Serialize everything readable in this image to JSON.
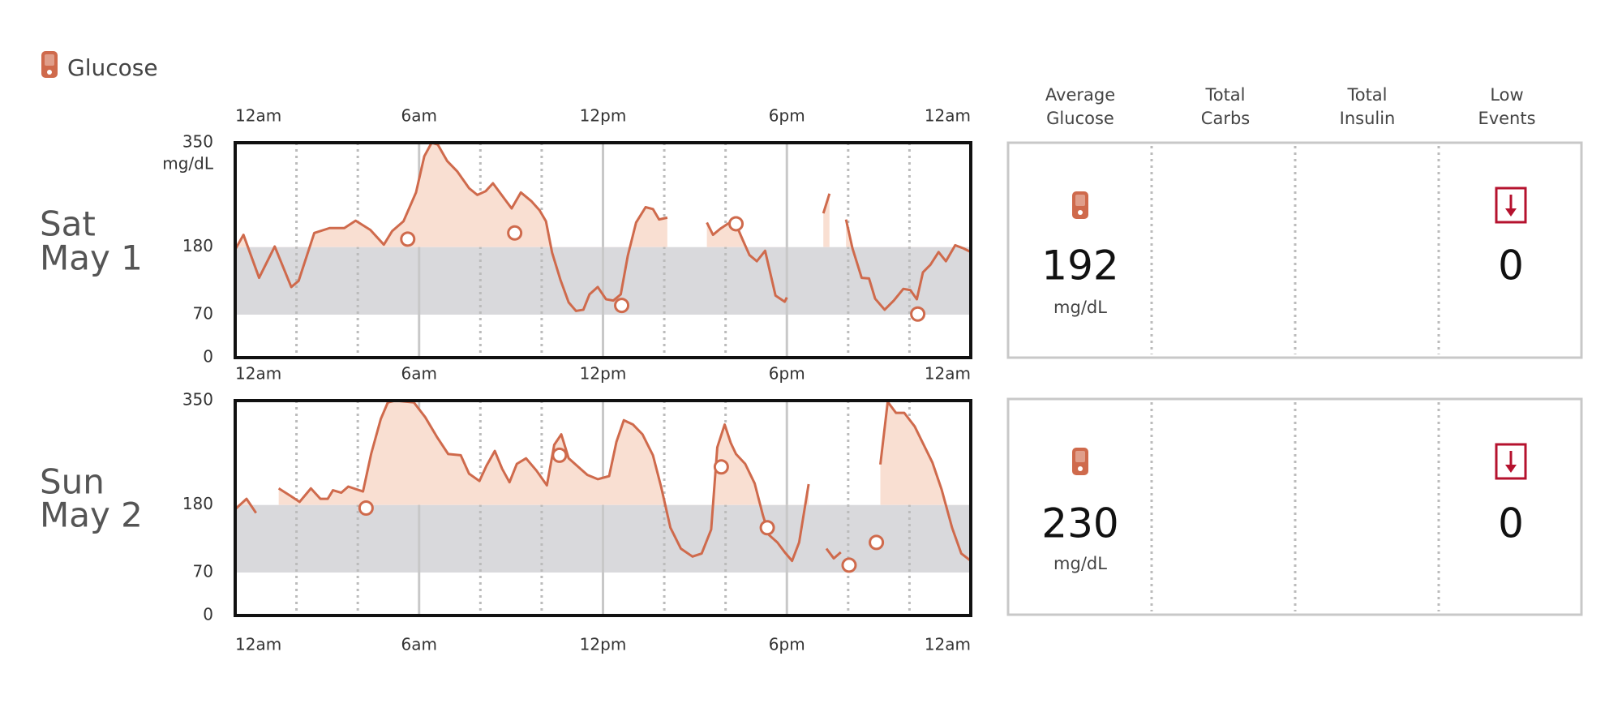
{
  "header": {
    "title": "Glucose"
  },
  "stats_header": [
    [
      "Average",
      "Glucose"
    ],
    [
      "Total",
      "Carbs"
    ],
    [
      "Total",
      "Insulin"
    ],
    [
      "Low",
      "Events"
    ]
  ],
  "days": [
    {
      "label": [
        "Sat",
        "May 1"
      ],
      "average_glucose": 192,
      "average_unit": "mg/dL",
      "low_events": 0
    },
    {
      "label": [
        "Sun",
        "May 2"
      ],
      "average_glucose": 230,
      "average_unit": "mg/dL",
      "low_events": 0
    }
  ],
  "chart_data": [
    {
      "type": "line",
      "xlim": [
        0,
        24
      ],
      "xticks": [
        {
          "value": 0,
          "label": "12am"
        },
        {
          "value": 6,
          "label": "6am"
        },
        {
          "value": 12,
          "label": "12pm"
        },
        {
          "value": 18,
          "label": "6pm"
        },
        {
          "value": 24,
          "label": "12am"
        }
      ],
      "xminorticks": [
        2,
        4,
        8,
        10,
        14,
        16,
        20,
        22
      ],
      "ylim": [
        0,
        350
      ],
      "yticks": [
        0,
        70,
        180,
        350
      ],
      "y_unit": "mg/dL",
      "target_range": [
        70,
        180
      ],
      "series": [
        {
          "type": "line",
          "color": "#cf6a4c",
          "area_color": "#f9dfd2",
          "x": [
            0,
            0.27,
            0.78,
            1.29,
            1.83,
            2.07,
            2.58,
            3.08,
            3.56,
            3.93,
            4.41,
            4.85,
            5.12,
            5.49,
            5.9,
            6.17,
            6.41,
            6.61,
            6.92,
            7.25,
            7.63,
            7.9,
            8.17,
            8.41,
            8.81,
            9.02,
            9.32,
            9.66,
            9.93,
            10.14,
            10.34,
            10.61,
            10.88,
            11.12,
            11.36,
            11.56,
            11.83,
            12.1,
            12.34,
            12.58,
            12.81,
            13.08,
            13.39,
            13.63,
            13.83,
            14.1,
            14.7,
            15.39,
            15.59,
            15.83,
            16.07,
            16.3,
            16.54,
            16.78,
            17.02,
            17.29,
            17.63,
            17.93,
            18.0,
            18.6,
            19.19,
            19.39,
            19.6,
            19.93,
            20.14,
            20.44,
            20.68,
            20.88,
            21.19,
            21.49,
            21.8,
            22.03,
            22.24,
            22.44,
            22.68,
            22.95,
            23.19,
            23.49,
            23.76,
            24
          ],
          "values": [
            176,
            200,
            130,
            181,
            115,
            125,
            203,
            211,
            211,
            223,
            208,
            184,
            206,
            222,
            269,
            328,
            350,
            347,
            320,
            303,
            276,
            265,
            271,
            284,
            257,
            243,
            269,
            255,
            240,
            222,
            171,
            127,
            90,
            76,
            78,
            103,
            115,
            95,
            93,
            103,
            166,
            220,
            245,
            242,
            225,
            228,
            null,
            220,
            200,
            210,
            218,
            222,
            194,
            167,
            157,
            174,
            101,
            91,
            98,
            null,
            235,
            267,
            null,
            225,
            178,
            130,
            129,
            96,
            78,
            93,
            112,
            110,
            95,
            139,
            151,
            172,
            157,
            183,
            178,
            172
          ]
        },
        {
          "type": "scatter",
          "color": "#cf6a4c",
          "x": [
            5.63,
            9.12,
            12.61,
            16.34,
            22.27
          ],
          "values": [
            193,
            203,
            85,
            218,
            71
          ]
        }
      ]
    },
    {
      "type": "line",
      "xlim": [
        0,
        24
      ],
      "xticks": [
        {
          "value": 0,
          "label": "12am"
        },
        {
          "value": 6,
          "label": "6am"
        },
        {
          "value": 12,
          "label": "12pm"
        },
        {
          "value": 18,
          "label": "6pm"
        },
        {
          "value": 24,
          "label": "12am"
        }
      ],
      "xminorticks": [
        2,
        4,
        8,
        10,
        14,
        16,
        20,
        22
      ],
      "ylim": [
        0,
        350
      ],
      "yticks": [
        0,
        70,
        180,
        350
      ],
      "target_range": [
        70,
        180
      ],
      "series": [
        {
          "type": "line",
          "color": "#cf6a4c",
          "area_color": "#f9dfd2",
          "x": [
            0,
            0.37,
            0.68,
            1.0,
            1.42,
            1.8,
            2.1,
            2.47,
            2.78,
            3.02,
            3.19,
            3.46,
            3.69,
            4.17,
            4.44,
            4.75,
            4.98,
            5.22,
            5.83,
            6.2,
            6.58,
            6.95,
            7.36,
            7.63,
            7.97,
            8.2,
            8.47,
            8.71,
            8.95,
            9.19,
            9.49,
            9.83,
            10.17,
            10.41,
            10.64,
            10.88,
            11.15,
            11.49,
            11.83,
            12.2,
            12.44,
            12.68,
            12.98,
            13.29,
            13.63,
            13.9,
            14.2,
            14.54,
            14.92,
            15.22,
            15.53,
            15.73,
            15.97,
            16.17,
            16.34,
            16.64,
            16.95,
            17.22,
            17.42,
            17.69,
            17.93,
            18.17,
            18.4,
            18.71,
            19.0,
            19.29,
            19.53,
            19.76,
            20.4,
            21.05,
            21.29,
            21.56,
            21.83,
            22.17,
            22.75,
            23.05,
            23.39,
            23.69,
            24
          ],
          "values": [
            173,
            190,
            167,
            null,
            207,
            195,
            185,
            207,
            190,
            190,
            204,
            200,
            210,
            202,
            264,
            320,
            347,
            350,
            347,
            323,
            291,
            263,
            261,
            231,
            219,
            244,
            268,
            239,
            217,
            247,
            256,
            236,
            212,
            278,
            295,
            256,
            244,
            229,
            222,
            227,
            283,
            318,
            311,
            295,
            261,
            209,
            143,
            109,
            96,
            101,
            140,
            274,
            311,
            281,
            263,
            247,
            215,
            163,
            131,
            119,
            103,
            89,
            119,
            214,
            null,
            109,
            93,
            103,
            null,
            246,
            348,
            330,
            330,
            308,
            249,
            205,
            143,
            101,
            89
          ]
        },
        {
          "type": "scatter",
          "color": "#cf6a4c",
          "x": [
            4.27,
            10.58,
            15.86,
            17.36,
            20.03,
            20.92
          ],
          "values": [
            175,
            261,
            242,
            143,
            82,
            119
          ]
        }
      ]
    }
  ]
}
